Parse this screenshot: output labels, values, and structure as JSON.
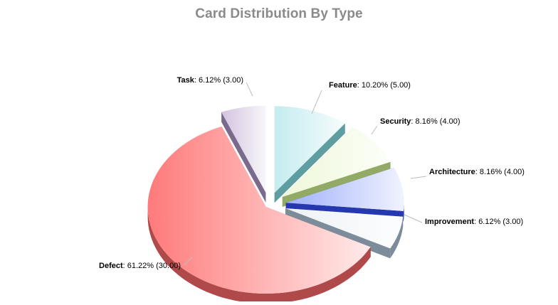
{
  "chart_data": {
    "type": "pie",
    "title": "Card Distribution By Type",
    "slices": [
      {
        "name": "Feature",
        "percent": "10.20%",
        "value": 5.0,
        "value_text": "(5.00)",
        "color": "#c4ecef",
        "side_color": "#5f9ea0"
      },
      {
        "name": "Security",
        "percent": "8.16%",
        "value": 4.0,
        "value_text": "(4.00)",
        "color": "#eef8d8",
        "side_color": "#93aa66"
      },
      {
        "name": "Architecture",
        "percent": "8.16%",
        "value": 4.0,
        "value_text": "(4.00)",
        "color": "#9fb0fb",
        "side_color": "#2638b0"
      },
      {
        "name": "Improvement",
        "percent": "6.12%",
        "value": 3.0,
        "value_text": "(3.00)",
        "color": "#eef2f6",
        "side_color": "#7d8c9a"
      },
      {
        "name": "Defect",
        "percent": "61.22%",
        "value": 30.0,
        "value_text": "(30.00)",
        "color": "#ff7a7a",
        "side_color": "#b04a4a"
      },
      {
        "name": "Task",
        "percent": "6.12%",
        "value": 3.0,
        "value_text": "(3.00)",
        "color": "#d2c3df",
        "side_color": "#7a6a8c"
      }
    ],
    "exploded": true,
    "style": "3d",
    "legend": "none"
  }
}
